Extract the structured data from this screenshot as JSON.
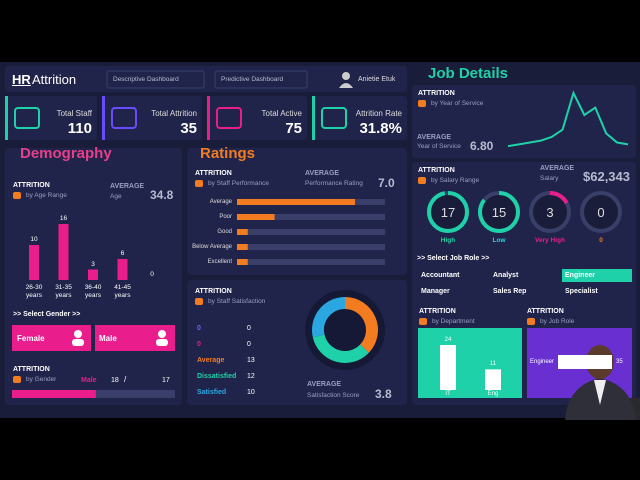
{
  "header": {
    "title": {
      "bold": "HR",
      "rest": "Attrition"
    },
    "nav": [
      "Descriptive Dashboard",
      "Predictive Dashboard"
    ],
    "user": "Anietie Etuk"
  },
  "kpis": [
    {
      "label": "Total Staff",
      "value": 110,
      "color": "#1fd1a8"
    },
    {
      "label": "Total Attrition",
      "value": 35,
      "color": "#6a4cff"
    },
    {
      "label": "Total Active",
      "value": 75,
      "color": "#e91e8c"
    },
    {
      "label": "Attrition Rate",
      "value": "31.8%",
      "color": "#1fd1a8"
    }
  ],
  "demography": {
    "title": "Demography",
    "age": {
      "type": "bar",
      "heading": "ATTRITION",
      "subheading": "by Age Range",
      "average_label": "AVERAGE",
      "average_name": "Age",
      "average": 34.8,
      "categories": [
        "26-30 years",
        "31-35 years",
        "36-40 years",
        "41-45 years",
        null
      ],
      "values": [
        10,
        16,
        3,
        6,
        0
      ],
      "color": "#e91e8c"
    },
    "gender_select": {
      "label": ">> Select Gender >>",
      "options": [
        "Female",
        "Male"
      ]
    },
    "gender": {
      "heading": "ATTRITION",
      "subheading": "by Gender",
      "label": "Male",
      "male": 18,
      "separator": "/",
      "female": 17
    }
  },
  "ratings": {
    "title": "Ratings",
    "performance": {
      "type": "bar",
      "orientation": "horizontal",
      "heading": "ATTRITION",
      "subheading": "by Staff Performance",
      "average_label": "AVERAGE",
      "average_name": "Performance Rating",
      "average": "7.0",
      "categories": [
        "Average",
        "Poor",
        "Good",
        "Below Average",
        "Excellent"
      ],
      "values": [
        22,
        7,
        2,
        2,
        2
      ],
      "color": "#f47c20"
    },
    "satisfaction": {
      "type": "donut",
      "heading": "ATTRITION",
      "subheading": "by Staff Satisfaction",
      "categories": [
        "0",
        "0",
        "Average",
        "Dissatisfied",
        "Satisfied"
      ],
      "values": [
        0,
        0,
        13,
        12,
        10
      ],
      "colors": [
        "#7b5cff",
        "#e91e8c",
        "#f47c20",
        "#1fd1a8",
        "#2aa7e0"
      ],
      "average_label": "AVERAGE",
      "average_name": "Satisfaction Score",
      "average": 3.8
    }
  },
  "job_details": {
    "title": "Job Details",
    "service": {
      "type": "line",
      "heading": "ATTRITION",
      "subheading": "by Year of Service",
      "values": [
        1,
        2,
        3,
        4,
        6,
        10,
        30,
        18,
        22,
        8,
        3,
        2
      ],
      "color": "#1fd1a8",
      "average_label": "AVERAGE",
      "average_name": "Year of Service",
      "average": "6.80"
    },
    "salary": {
      "type": "ring",
      "heading": "ATTRITION",
      "subheading": "by Salary Range",
      "average_label": "AVERAGE",
      "average_name": "Salary",
      "average": "$62,343",
      "categories": [
        "High",
        "Low",
        "Very High",
        "0"
      ],
      "values": [
        17,
        15,
        3,
        0
      ],
      "colors": [
        "#1fd1a8",
        "#1fd1a8",
        "#e91e8c",
        "#6b6f8c"
      ],
      "label_colors": [
        "#1fd1a8",
        "#2ad4d4",
        "#e91e8c",
        "#f47c20"
      ]
    },
    "role_select": {
      "label": ">> Select Job Role >>",
      "options": [
        "Accountant",
        "Analyst",
        "Engineer",
        "Manager",
        "Sales Rep",
        "Specialist"
      ],
      "selected": 2
    },
    "department": {
      "type": "bar",
      "heading": "ATTRITION",
      "subheading": "by Department",
      "categories": [
        "IT",
        "Eng"
      ],
      "values": [
        24,
        11
      ]
    },
    "job_role": {
      "type": "bar",
      "orientation": "horizontal",
      "heading": "ATTRITION",
      "subheading": "by Job Role",
      "categories": [
        "Engineer"
      ],
      "values": [
        35
      ]
    }
  }
}
